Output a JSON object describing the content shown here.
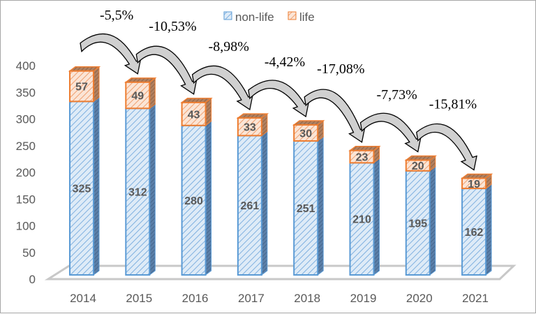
{
  "chart_data": {
    "type": "bar",
    "stacked": true,
    "style": "3d-column",
    "categories": [
      "2014",
      "2015",
      "2016",
      "2017",
      "2018",
      "2019",
      "2020",
      "2021"
    ],
    "series": [
      {
        "name": "non-life",
        "color": "#5b9bd5",
        "values": [
          325,
          312,
          280,
          261,
          251,
          210,
          195,
          162
        ]
      },
      {
        "name": "life",
        "color": "#ed7d31",
        "values": [
          57,
          49,
          43,
          33,
          30,
          23,
          20,
          19
        ]
      }
    ],
    "ylim": [
      0,
      400
    ],
    "yticks": [
      "0",
      "50",
      "100",
      "150",
      "200",
      "250",
      "300",
      "350",
      "400"
    ],
    "legend_position": "top-right",
    "annotations": [
      "-5,5%",
      "-10,53%",
      "-8,98%",
      "-4,42%",
      "-17,08%",
      "-7,73%",
      "-15,81%"
    ],
    "title": "",
    "xlabel": "",
    "ylabel": ""
  }
}
